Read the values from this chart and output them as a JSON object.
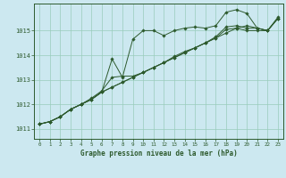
{
  "title": "Graphe pression niveau de la mer (hPa)",
  "background_color": "#cce8f0",
  "grid_color": "#99ccbb",
  "line_color": "#2d5a2d",
  "xlim": [
    -0.5,
    23.5
  ],
  "ylim": [
    1010.6,
    1016.1
  ],
  "yticks": [
    1011,
    1012,
    1013,
    1014,
    1015
  ],
  "xticks": [
    0,
    1,
    2,
    3,
    4,
    5,
    6,
    7,
    8,
    9,
    10,
    11,
    12,
    13,
    14,
    15,
    16,
    17,
    18,
    19,
    20,
    21,
    22,
    23
  ],
  "series": [
    [
      1011.2,
      1011.3,
      1011.5,
      1011.8,
      1012.0,
      1012.2,
      1012.5,
      1013.85,
      1013.1,
      1014.65,
      1015.0,
      1015.0,
      1014.8,
      1015.0,
      1015.1,
      1015.15,
      1015.1,
      1015.2,
      1015.75,
      1015.85,
      1015.7,
      1015.1,
      1015.0,
      1015.55
    ],
    [
      1011.2,
      1011.3,
      1011.5,
      1011.8,
      1012.0,
      1012.2,
      1012.5,
      1012.7,
      1012.9,
      1013.1,
      1013.3,
      1013.5,
      1013.7,
      1013.9,
      1014.1,
      1014.3,
      1014.5,
      1014.7,
      1014.9,
      1015.1,
      1015.2,
      1015.1,
      1015.0,
      1015.5
    ],
    [
      1011.2,
      1011.3,
      1011.5,
      1011.8,
      1012.0,
      1012.2,
      1012.5,
      1012.7,
      1012.9,
      1013.1,
      1013.3,
      1013.5,
      1013.7,
      1013.9,
      1014.1,
      1014.3,
      1014.5,
      1014.7,
      1015.05,
      1015.1,
      1015.0,
      1015.0,
      1015.0,
      1015.5
    ],
    [
      1011.2,
      1011.3,
      1011.5,
      1011.8,
      1012.0,
      1012.25,
      1012.55,
      1013.1,
      1013.15,
      1013.15,
      1013.3,
      1013.5,
      1013.7,
      1013.95,
      1014.15,
      1014.3,
      1014.5,
      1014.75,
      1015.15,
      1015.2,
      1015.1,
      1015.1,
      1015.0,
      1015.5
    ]
  ]
}
